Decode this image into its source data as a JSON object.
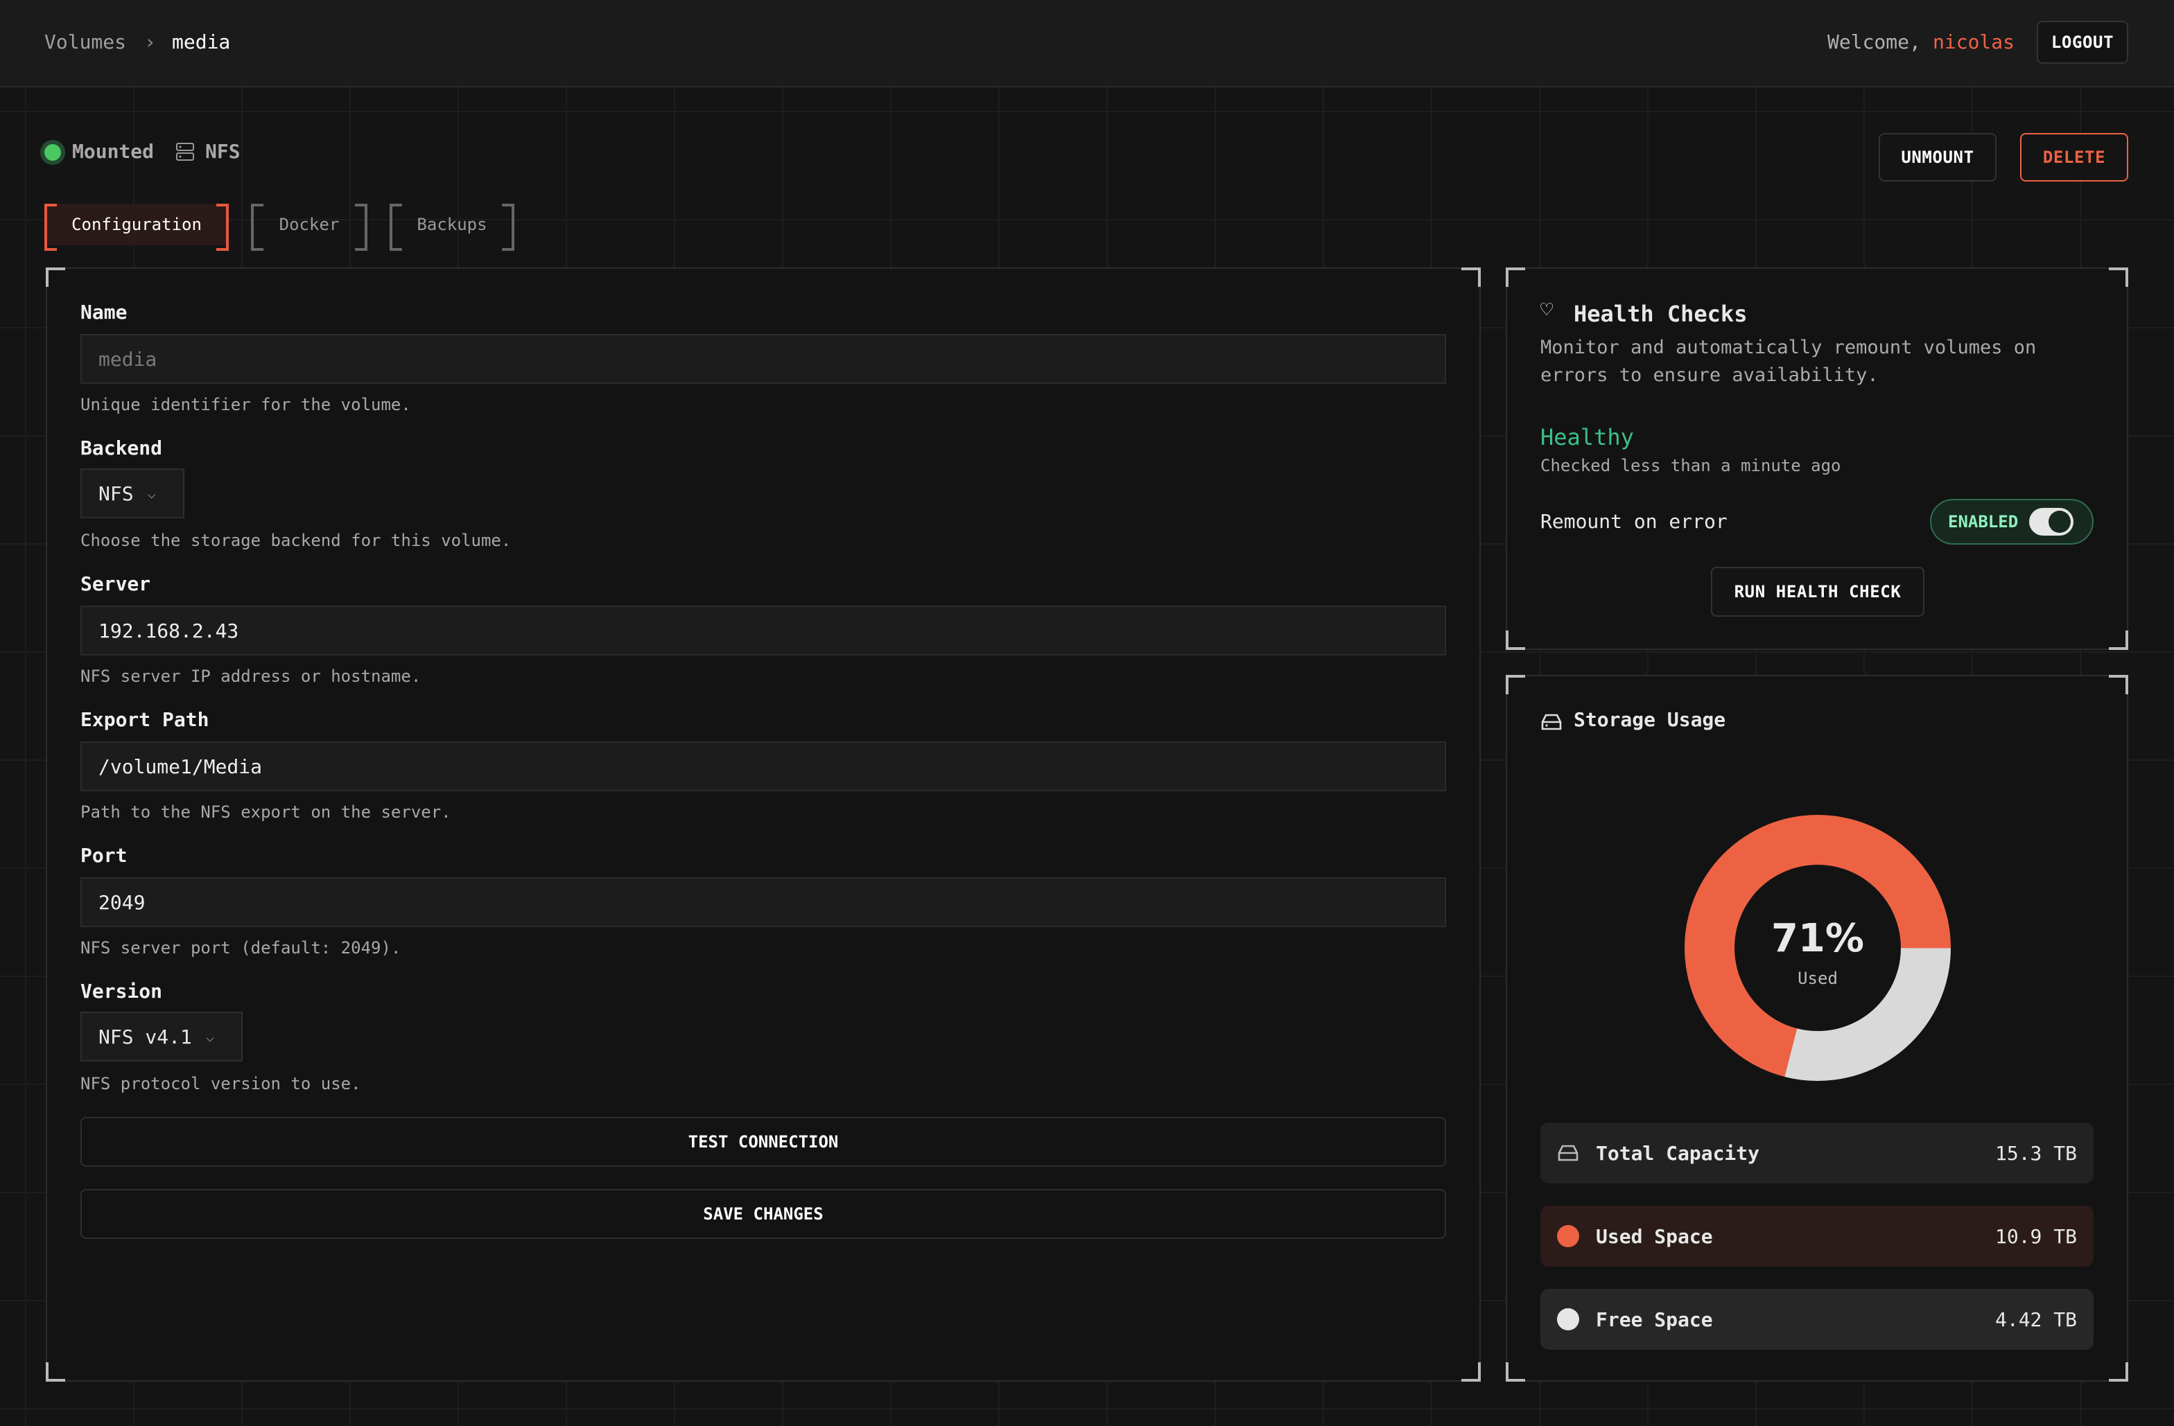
{
  "header": {
    "breadcrumb": [
      "Volumes",
      "media"
    ],
    "welcome": "Welcome,",
    "username": "nicolas",
    "logout": "LOGOUT"
  },
  "status": {
    "mounted": "Mounted",
    "backend": "NFS",
    "unmount": "UNMOUNT",
    "delete": "DELETE"
  },
  "tabs": [
    {
      "label": "Configuration",
      "active": true
    },
    {
      "label": "Docker"
    },
    {
      "label": "Backups"
    }
  ],
  "form": {
    "name": {
      "label": "Name",
      "placeholder": "media",
      "help": "Unique identifier for the volume."
    },
    "backend": {
      "label": "Backend",
      "value": "NFS",
      "help": "Choose the storage backend for this volume."
    },
    "server": {
      "label": "Server",
      "value": "192.168.2.43",
      "help": "NFS server IP address or hostname."
    },
    "export_path": {
      "label": "Export Path",
      "value": "/volume1/Media",
      "help": "Path to the NFS export on the server."
    },
    "port": {
      "label": "Port",
      "value": "2049",
      "help": "NFS server port (default: 2049)."
    },
    "version": {
      "label": "Version",
      "value": "NFS v4.1",
      "help": "NFS protocol version to use."
    },
    "test": "TEST CONNECTION",
    "save": "SAVE CHANGES"
  },
  "health": {
    "title": "Health Checks",
    "description": "Monitor and automatically remount volumes on errors to ensure availability.",
    "state": "Healthy",
    "checked": "Checked less than a minute ago",
    "remount_label": "Remount on error",
    "toggle": "ENABLED",
    "toggle_on": true,
    "run": "RUN HEALTH CHECK"
  },
  "storage": {
    "title": "Storage Usage",
    "percent": "71%",
    "percent_label": "Used",
    "used_fraction": 0.71,
    "rows": [
      {
        "label": "Total Capacity",
        "value": "15.3 TB"
      },
      {
        "label": "Used Space",
        "value": "10.9 TB"
      },
      {
        "label": "Free Space",
        "value": "4.42 TB"
      }
    ],
    "colors": {
      "used": "#ee6244",
      "free": "#d9d9d9"
    }
  }
}
